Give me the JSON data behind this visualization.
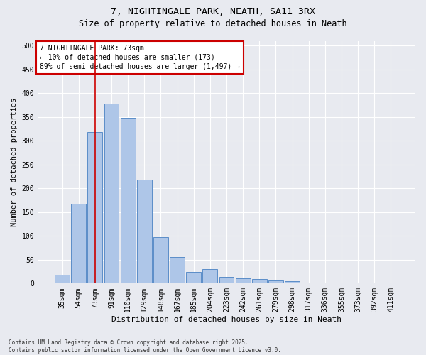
{
  "title1": "7, NIGHTINGALE PARK, NEATH, SA11 3RX",
  "title2": "Size of property relative to detached houses in Neath",
  "xlabel": "Distribution of detached houses by size in Neath",
  "ylabel": "Number of detached properties",
  "categories": [
    "35sqm",
    "54sqm",
    "73sqm",
    "91sqm",
    "110sqm",
    "129sqm",
    "148sqm",
    "167sqm",
    "185sqm",
    "204sqm",
    "223sqm",
    "242sqm",
    "261sqm",
    "279sqm",
    "298sqm",
    "317sqm",
    "336sqm",
    "355sqm",
    "373sqm",
    "392sqm",
    "411sqm"
  ],
  "values": [
    18,
    167,
    318,
    378,
    348,
    218,
    98,
    55,
    25,
    30,
    14,
    11,
    10,
    7,
    5,
    0,
    2,
    0,
    0,
    0,
    2
  ],
  "bar_color": "#aec6e8",
  "bar_edge_color": "#5b8dc8",
  "background_color": "#e8eaf0",
  "vline_index": 2,
  "vline_color": "#cc0000",
  "annotation_line1": "7 NIGHTINGALE PARK: 73sqm",
  "annotation_line2": "← 10% of detached houses are smaller (173)",
  "annotation_line3": "89% of semi-detached houses are larger (1,497) →",
  "annotation_box_color": "#cc0000",
  "footnote": "Contains HM Land Registry data © Crown copyright and database right 2025.\nContains public sector information licensed under the Open Government Licence v3.0.",
  "ylim": [
    0,
    510
  ],
  "yticks": [
    0,
    50,
    100,
    150,
    200,
    250,
    300,
    350,
    400,
    450,
    500
  ],
  "title1_fontsize": 9.5,
  "title2_fontsize": 8.5,
  "tick_fontsize": 7,
  "ylabel_fontsize": 7.5,
  "xlabel_fontsize": 8
}
